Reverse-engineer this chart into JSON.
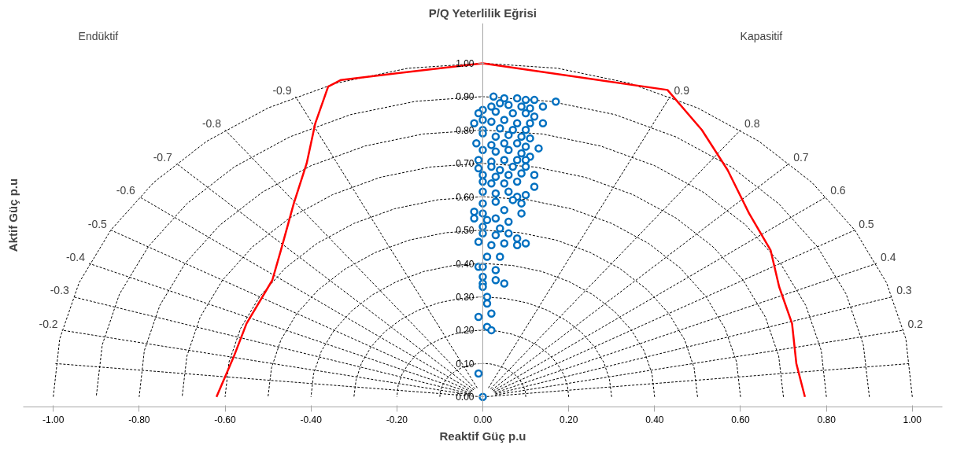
{
  "chart_data": {
    "type": "scatter",
    "title": "P/Q Yeterlilik Eğrisi",
    "xlabel": "Reaktif Güç p.u",
    "ylabel": "Aktif Güç p.u",
    "xlim": [
      -1.07,
      1.07
    ],
    "ylim": [
      -0.03,
      1.12
    ],
    "xticks": [
      {
        "value": -1,
        "label": "-1.00"
      },
      {
        "value": -0.8,
        "label": "-0.80"
      },
      {
        "value": -0.6,
        "label": "-0.60"
      },
      {
        "value": -0.4,
        "label": "-0.40"
      },
      {
        "value": -0.2,
        "label": "-0.20"
      },
      {
        "value": 0,
        "label": "0.00"
      },
      {
        "value": 0.2,
        "label": "0.20"
      },
      {
        "value": 0.4,
        "label": "0.40"
      },
      {
        "value": 0.6,
        "label": "0.60"
      },
      {
        "value": 0.8,
        "label": "0.80"
      },
      {
        "value": 1,
        "label": "1.00"
      }
    ],
    "yticks": [
      {
        "value": 0,
        "label": "0.00"
      },
      {
        "value": 0.1,
        "label": "0.10"
      },
      {
        "value": 0.2,
        "label": "0.20"
      },
      {
        "value": 0.3,
        "label": "0.30"
      },
      {
        "value": 0.4,
        "label": "0.40"
      },
      {
        "value": 0.5,
        "label": "0.50"
      },
      {
        "value": 0.6,
        "label": "0.60"
      },
      {
        "value": 0.7,
        "label": "0.70"
      },
      {
        "value": 0.8,
        "label": "0.80"
      },
      {
        "value": 0.9,
        "label": "0.90"
      },
      {
        "value": 1,
        "label": "1.00"
      }
    ],
    "annotations": [
      "Endüktif",
      "Kapasitif"
    ],
    "series": [
      {
        "type": "line",
        "line_style": "dashed",
        "color": "#000000",
        "x": [
          0.1,
          0.099,
          0.094,
          0.087,
          0.077,
          0.064,
          0.05,
          0.034,
          0.017,
          0,
          -0.017,
          -0.034,
          -0.05,
          -0.064,
          -0.077,
          -0.087,
          -0.094,
          -0.099,
          -0.1
        ],
        "values": [
          0,
          0.017,
          0.034,
          0.05,
          0.064,
          0.077,
          0.087,
          0.094,
          0.099,
          0.1,
          0.099,
          0.094,
          0.087,
          0.077,
          0.064,
          0.05,
          0.034,
          0.017,
          0
        ]
      },
      {
        "type": "line",
        "line_style": "dashed",
        "color": "#000000",
        "x": [
          0.2,
          0.197,
          0.188,
          0.173,
          0.153,
          0.129,
          0.1,
          0.068,
          0.035,
          0,
          -0.035,
          -0.068,
          -0.1,
          -0.129,
          -0.153,
          -0.173,
          -0.188,
          -0.197,
          -0.2
        ],
        "values": [
          0,
          0.035,
          0.068,
          0.1,
          0.129,
          0.153,
          0.173,
          0.188,
          0.197,
          0.2,
          0.197,
          0.188,
          0.173,
          0.153,
          0.129,
          0.1,
          0.068,
          0.035,
          0
        ]
      },
      {
        "type": "line",
        "line_style": "dashed",
        "color": "#000000",
        "x": [
          0.3,
          0.295,
          0.282,
          0.26,
          0.23,
          0.193,
          0.15,
          0.103,
          0.052,
          0,
          -0.052,
          -0.103,
          -0.15,
          -0.193,
          -0.23,
          -0.26,
          -0.282,
          -0.295,
          -0.3
        ],
        "values": [
          0,
          0.052,
          0.103,
          0.15,
          0.193,
          0.23,
          0.26,
          0.282,
          0.295,
          0.3,
          0.295,
          0.282,
          0.26,
          0.23,
          0.193,
          0.15,
          0.103,
          0.052,
          0
        ]
      },
      {
        "type": "line",
        "line_style": "dashed",
        "color": "#000000",
        "x": [
          0.4,
          0.394,
          0.376,
          0.346,
          0.306,
          0.257,
          0.2,
          0.137,
          0.069,
          0,
          -0.069,
          -0.137,
          -0.2,
          -0.257,
          -0.306,
          -0.346,
          -0.376,
          -0.394,
          -0.4
        ],
        "values": [
          0,
          0.069,
          0.137,
          0.2,
          0.257,
          0.306,
          0.346,
          0.376,
          0.394,
          0.4,
          0.394,
          0.376,
          0.346,
          0.306,
          0.257,
          0.2,
          0.137,
          0.069,
          0
        ]
      },
      {
        "type": "line",
        "line_style": "dashed",
        "color": "#000000",
        "x": [
          0.5,
          0.492,
          0.47,
          0.433,
          0.383,
          0.321,
          0.25,
          0.171,
          0.087,
          0,
          -0.087,
          -0.171,
          -0.25,
          -0.321,
          -0.383,
          -0.433,
          -0.47,
          -0.492,
          -0.5
        ],
        "values": [
          0,
          0.087,
          0.171,
          0.25,
          0.321,
          0.383,
          0.433,
          0.47,
          0.492,
          0.5,
          0.492,
          0.47,
          0.433,
          0.383,
          0.321,
          0.25,
          0.171,
          0.087,
          0
        ]
      },
      {
        "type": "line",
        "line_style": "dashed",
        "color": "#000000",
        "x": [
          0.6,
          0.591,
          0.564,
          0.52,
          0.46,
          0.386,
          0.3,
          0.205,
          0.104,
          0,
          -0.104,
          -0.205,
          -0.3,
          -0.386,
          -0.46,
          -0.52,
          -0.564,
          -0.591,
          -0.6
        ],
        "values": [
          0,
          0.104,
          0.205,
          0.3,
          0.386,
          0.46,
          0.52,
          0.564,
          0.591,
          0.6,
          0.591,
          0.564,
          0.52,
          0.46,
          0.386,
          0.3,
          0.205,
          0.104,
          0
        ]
      },
      {
        "type": "line",
        "line_style": "dashed",
        "color": "#000000",
        "x": [
          0.7,
          0.689,
          0.658,
          0.606,
          0.536,
          0.45,
          0.35,
          0.239,
          0.122,
          0,
          -0.122,
          -0.239,
          -0.35,
          -0.45,
          -0.536,
          -0.606,
          -0.658,
          -0.689,
          -0.7
        ],
        "values": [
          0,
          0.122,
          0.239,
          0.35,
          0.45,
          0.536,
          0.606,
          0.658,
          0.689,
          0.7,
          0.689,
          0.658,
          0.606,
          0.536,
          0.45,
          0.35,
          0.239,
          0.122,
          0
        ]
      },
      {
        "type": "line",
        "line_style": "dashed",
        "color": "#000000",
        "x": [
          0.8,
          0.788,
          0.752,
          0.693,
          0.613,
          0.514,
          0.4,
          0.274,
          0.139,
          0,
          -0.139,
          -0.274,
          -0.4,
          -0.514,
          -0.613,
          -0.693,
          -0.752,
          -0.788,
          -0.8
        ],
        "values": [
          0,
          0.139,
          0.274,
          0.4,
          0.514,
          0.613,
          0.693,
          0.752,
          0.788,
          0.8,
          0.788,
          0.752,
          0.693,
          0.613,
          0.514,
          0.4,
          0.274,
          0.139,
          0
        ]
      },
      {
        "type": "line",
        "line_style": "dashed",
        "color": "#000000",
        "x": [
          0.9,
          0.886,
          0.846,
          0.779,
          0.689,
          0.579,
          0.45,
          0.308,
          0.156,
          0,
          -0.156,
          -0.308,
          -0.45,
          -0.579,
          -0.689,
          -0.779,
          -0.846,
          -0.886,
          -0.9
        ],
        "values": [
          0,
          0.156,
          0.308,
          0.45,
          0.579,
          0.689,
          0.779,
          0.846,
          0.886,
          0.9,
          0.886,
          0.846,
          0.779,
          0.689,
          0.579,
          0.45,
          0.308,
          0.156,
          0
        ]
      },
      {
        "type": "line",
        "line_style": "dashed",
        "color": "#000000",
        "x": [
          1,
          0.985,
          0.94,
          0.866,
          0.766,
          0.643,
          0.5,
          0.342,
          0.174,
          0,
          -0.174,
          -0.342,
          -0.5,
          -0.643,
          -0.766,
          -0.866,
          -0.94,
          -0.985,
          -1
        ],
        "values": [
          0,
          0.174,
          0.342,
          0.5,
          0.643,
          0.766,
          0.866,
          0.94,
          0.985,
          1,
          0.985,
          0.94,
          0.866,
          0.766,
          0.643,
          0.5,
          0.342,
          0.174,
          0
        ]
      },
      {
        "type": "line",
        "line_style": "dashed",
        "color": "#000000",
        "name": "-0.9",
        "x": [
          -0.013,
          -0.436
        ],
        "values": [
          0.027,
          0.9
        ]
      },
      {
        "type": "line",
        "line_style": "dashed",
        "color": "#000000",
        "name": "-0.8",
        "x": [
          -0.018,
          -0.6
        ],
        "values": [
          0.024,
          0.8
        ]
      },
      {
        "type": "line",
        "line_style": "dashed",
        "color": "#000000",
        "name": "-0.7",
        "x": [
          -0.021,
          -0.714
        ],
        "values": [
          0.021,
          0.7
        ]
      },
      {
        "type": "line",
        "line_style": "dashed",
        "color": "#000000",
        "name": "-0.6",
        "x": [
          -0.024,
          -0.8
        ],
        "values": [
          0.018,
          0.6
        ]
      },
      {
        "type": "line",
        "line_style": "dashed",
        "color": "#000000",
        "name": "-0.5",
        "x": [
          -0.026,
          -0.866
        ],
        "values": [
          0.015,
          0.5
        ]
      },
      {
        "type": "line",
        "line_style": "dashed",
        "color": "#000000",
        "name": "-0.4",
        "x": [
          -0.028,
          -0.917
        ],
        "values": [
          0.012,
          0.4
        ]
      },
      {
        "type": "line",
        "line_style": "dashed",
        "color": "#000000",
        "name": "-0.3",
        "x": [
          -0.029,
          -0.954
        ],
        "values": [
          0.009,
          0.3
        ]
      },
      {
        "type": "line",
        "line_style": "dashed",
        "color": "#000000",
        "name": "-0.2",
        "x": [
          -0.029,
          -0.98
        ],
        "values": [
          0.006,
          0.2
        ]
      },
      {
        "type": "line",
        "line_style": "dashed",
        "color": "#000000",
        "x": [
          -0.995,
          0,
          0.995
        ],
        "values": [
          0.1,
          0,
          0.1
        ]
      },
      {
        "type": "line",
        "line_style": "dashed",
        "color": "#000000",
        "name": "0.9",
        "x": [
          0.013,
          0.436
        ],
        "values": [
          0.027,
          0.9
        ]
      },
      {
        "type": "line",
        "line_style": "dashed",
        "color": "#000000",
        "name": "0.8",
        "x": [
          0.018,
          0.6
        ],
        "values": [
          0.024,
          0.8
        ]
      },
      {
        "type": "line",
        "line_style": "dashed",
        "color": "#000000",
        "name": "0.7",
        "x": [
          0.021,
          0.714
        ],
        "values": [
          0.021,
          0.7
        ]
      },
      {
        "type": "line",
        "line_style": "dashed",
        "color": "#000000",
        "name": "0.6",
        "x": [
          0.024,
          0.8
        ],
        "values": [
          0.018,
          0.6
        ]
      },
      {
        "type": "line",
        "line_style": "dashed",
        "color": "#000000",
        "name": "0.5",
        "x": [
          0.026,
          0.866
        ],
        "values": [
          0.015,
          0.5
        ]
      },
      {
        "type": "line",
        "line_style": "dashed",
        "color": "#000000",
        "name": "0.4",
        "x": [
          0.028,
          0.917
        ],
        "values": [
          0.012,
          0.4
        ]
      },
      {
        "type": "line",
        "line_style": "dashed",
        "color": "#000000",
        "name": "0.3",
        "x": [
          0.029,
          0.954
        ],
        "values": [
          0.009,
          0.3
        ]
      },
      {
        "type": "line",
        "line_style": "dashed",
        "color": "#000000",
        "name": "0.2",
        "x": [
          0.029,
          0.98
        ],
        "values": [
          0.006,
          0.2
        ]
      },
      {
        "type": "line",
        "color": "#ff0000",
        "x": [
          -0.62,
          -0.58,
          -0.55,
          -0.49,
          -0.47,
          -0.44,
          -0.41,
          -0.39,
          -0.36,
          -0.33,
          0,
          0.43,
          0.51,
          0.57,
          0.62,
          0.67,
          0.69,
          0.72,
          0.73,
          0.75
        ],
        "values": [
          0,
          0.12,
          0.22,
          0.35,
          0.44,
          0.58,
          0.7,
          0.82,
          0.93,
          0.95,
          1,
          0.92,
          0.8,
          0.68,
          0.55,
          0.44,
          0.33,
          0.22,
          0.1,
          0
        ]
      },
      {
        "color": "#0070c0",
        "marker": "circle",
        "x": [
          0.025,
          0.05,
          0.08,
          0.1,
          0.12,
          0.17,
          0.14,
          0,
          0.02,
          0.04,
          0.06,
          0.09,
          0.11,
          -0.01,
          0.03,
          0.07,
          0.1,
          0.12,
          -0.02,
          0,
          0.02,
          0.05,
          0.08,
          0.11,
          0.14,
          0,
          0.04,
          0.07,
          0.1,
          0,
          0.03,
          0.06,
          0.09,
          0.11,
          -0.015,
          0.02,
          0.05,
          0.08,
          0.1,
          0.13,
          0,
          0.03,
          0.06,
          0.09,
          0.11,
          -0.01,
          0.02,
          0.05,
          0.08,
          0.1,
          -0.01,
          0.02,
          0.04,
          0.07,
          0.1,
          0,
          0.03,
          0.06,
          0.09,
          0.12,
          0,
          0.02,
          0.05,
          0.08,
          0.12,
          0,
          0.03,
          0.06,
          0.08,
          0.1,
          0,
          0.03,
          0.07,
          0.09,
          -0.02,
          0,
          0.05,
          0.09,
          -0.02,
          0.01,
          0.03,
          0.06,
          0,
          0.04,
          0,
          0.03,
          0.06,
          0.08,
          -0.01,
          0.02,
          0.05,
          0.08,
          0.1,
          0.01,
          0.04,
          -0.01,
          0,
          0.03,
          0,
          0,
          0.03,
          0.05,
          0,
          0.01,
          0.01,
          0.02,
          -0.01,
          0.01,
          0.02,
          -0.01,
          0
        ],
        "values": [
          0.9,
          0.895,
          0.895,
          0.89,
          0.89,
          0.885,
          0.87,
          0.86,
          0.87,
          0.88,
          0.875,
          0.87,
          0.865,
          0.85,
          0.855,
          0.85,
          0.85,
          0.84,
          0.82,
          0.83,
          0.825,
          0.83,
          0.82,
          0.82,
          0.82,
          0.8,
          0.805,
          0.8,
          0.8,
          0.79,
          0.78,
          0.785,
          0.78,
          0.775,
          0.76,
          0.755,
          0.76,
          0.76,
          0.75,
          0.745,
          0.74,
          0.735,
          0.74,
          0.73,
          0.72,
          0.71,
          0.705,
          0.71,
          0.71,
          0.71,
          0.685,
          0.69,
          0.68,
          0.69,
          0.69,
          0.665,
          0.66,
          0.665,
          0.67,
          0.665,
          0.645,
          0.64,
          0.64,
          0.645,
          0.63,
          0.615,
          0.61,
          0.615,
          0.6,
          0.605,
          0.58,
          0.585,
          0.59,
          0.58,
          0.555,
          0.55,
          0.56,
          0.55,
          0.535,
          0.53,
          0.535,
          0.525,
          0.51,
          0.505,
          0.49,
          0.485,
          0.49,
          0.475,
          0.465,
          0.455,
          0.46,
          0.455,
          0.46,
          0.42,
          0.42,
          0.39,
          0.39,
          0.38,
          0.36,
          0.34,
          0.35,
          0.34,
          0.33,
          0.3,
          0.28,
          0.25,
          0.24,
          0.21,
          0.2,
          0.07,
          0
        ]
      }
    ]
  }
}
